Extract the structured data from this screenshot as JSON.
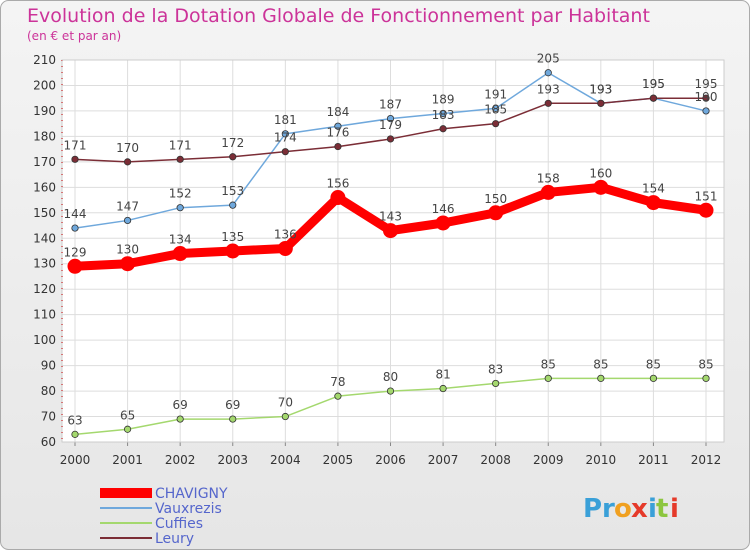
{
  "chart_data": {
    "type": "line",
    "title": "Evolution de la Dotation Globale de Fonctionnement par Habitant",
    "subtitle": "(en € et par an)",
    "x": [
      "2000",
      "2001",
      "2002",
      "2003",
      "2004",
      "2005",
      "2006",
      "2007",
      "2008",
      "2009",
      "2010",
      "2011",
      "2012"
    ],
    "ylim": [
      60,
      210
    ],
    "yticks": [
      60,
      70,
      80,
      90,
      100,
      110,
      120,
      130,
      140,
      150,
      160,
      170,
      180,
      190,
      200,
      210
    ],
    "grid": true,
    "legend_position": "bottom-left",
    "series": [
      {
        "name": "CHAVIGNY",
        "color": "#ff0000",
        "values": [
          129,
          130,
          134,
          135,
          136,
          156,
          143,
          146,
          150,
          158,
          160,
          154,
          151
        ]
      },
      {
        "name": "Vauxrezis",
        "color": "#6fa8dc",
        "values": [
          144,
          147,
          152,
          153,
          181,
          184,
          187,
          189,
          191,
          205,
          193,
          195,
          190
        ]
      },
      {
        "name": "Cuffies",
        "color": "#a4d86e",
        "values": [
          63,
          65,
          69,
          69,
          70,
          78,
          80,
          81,
          83,
          85,
          85,
          85,
          85
        ]
      },
      {
        "name": "Leury",
        "color": "#7b2d36",
        "values": [
          171,
          170,
          171,
          172,
          174,
          176,
          179,
          183,
          185,
          193,
          193,
          195,
          195
        ]
      }
    ],
    "brand": "Proxiti",
    "colors": {
      "title": "#cc3399",
      "frame": "#999999",
      "grid": "#dddddd"
    }
  }
}
